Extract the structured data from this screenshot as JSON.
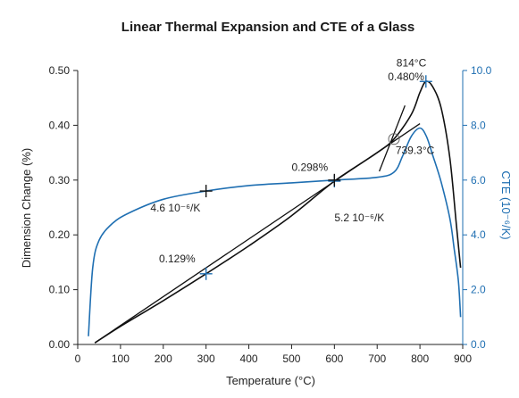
{
  "chart_data": {
    "type": "line",
    "title": "Linear Thermal Expansion and CTE of a Glass",
    "xlabel": "Temperature (°C)",
    "ylabel": "Dimension Change (%)",
    "y2label": "CTE (10⁻⁶/K)",
    "xlim": [
      0,
      900
    ],
    "ylim": [
      0,
      0.5
    ],
    "y2lim": [
      0,
      10
    ],
    "x_ticks": [
      "0",
      "100",
      "200",
      "300",
      "400",
      "500",
      "600",
      "700",
      "800",
      "900"
    ],
    "y_ticks": [
      "0.00",
      "0.10",
      "0.20",
      "0.30",
      "0.40",
      "0.50"
    ],
    "y2_ticks": [
      "0.0",
      "2.0",
      "4.0",
      "6.0",
      "8.0",
      "10.0"
    ],
    "grid": false,
    "colors": {
      "expansion": "#111111",
      "cte": "#1f6fb2"
    },
    "series": [
      {
        "axis": "left",
        "x": [
          40,
          100,
          200,
          300,
          400,
          500,
          600,
          700,
          739.3,
          780,
          800,
          814,
          830,
          850,
          870,
          885,
          895
        ],
        "y": [
          0.003,
          0.033,
          0.08,
          0.129,
          0.18,
          0.235,
          0.298,
          0.35,
          0.375,
          0.42,
          0.46,
          0.48,
          0.47,
          0.43,
          0.34,
          0.22,
          0.14
        ]
      },
      {
        "axis": "right",
        "x": [
          25,
          35,
          50,
          80,
          120,
          200,
          300,
          400,
          500,
          600,
          700,
          740,
          760,
          780,
          800,
          815,
          830,
          850,
          870,
          880,
          890,
          895
        ],
        "y": [
          0.3,
          2.8,
          3.8,
          4.4,
          4.8,
          5.3,
          5.6,
          5.8,
          5.9,
          6.0,
          6.1,
          6.3,
          6.9,
          7.6,
          7.9,
          7.6,
          6.9,
          5.9,
          4.6,
          3.5,
          2.3,
          1.0
        ]
      }
    ],
    "tangent_lines": [
      {
        "x": [
          40,
          800
        ],
        "y": [
          0.003,
          0.403
        ]
      },
      {
        "x": [
          705,
          765
        ],
        "y": [
          0.316,
          0.436
        ]
      }
    ],
    "markers": [
      {
        "axis": "left",
        "x": 300,
        "y": 0.129,
        "color": "blue",
        "shape": "cross"
      },
      {
        "axis": "left",
        "x": 600,
        "y": 0.298,
        "color": "blue",
        "shape": "cross"
      },
      {
        "axis": "left",
        "x": 814,
        "y": 0.48,
        "color": "blue",
        "shape": "cross"
      },
      {
        "axis": "right",
        "x": 300,
        "y": 5.6,
        "color": "black",
        "shape": "cross"
      },
      {
        "axis": "right",
        "x": 600,
        "y": 6.0,
        "color": "black",
        "shape": "cross"
      },
      {
        "axis": "left",
        "x": 739.3,
        "y": 0.375,
        "color": "gray",
        "shape": "circle"
      }
    ],
    "annotations": [
      {
        "text": "0.129%",
        "x": 190,
        "y": 0.15
      },
      {
        "text": "0.298%",
        "x": 500,
        "y": 0.317
      },
      {
        "text": "4.6 10⁻⁶/K",
        "x": 170,
        "y": 0.243
      },
      {
        "text": "5.2 10⁻⁶/K",
        "x": 600,
        "y": 0.225
      },
      {
        "text": "814°C",
        "x": 745,
        "y": 0.507
      },
      {
        "text": "0.480%",
        "x": 725,
        "y": 0.482
      },
      {
        "text": "739.3°C",
        "x": 743,
        "y": 0.348
      }
    ]
  }
}
